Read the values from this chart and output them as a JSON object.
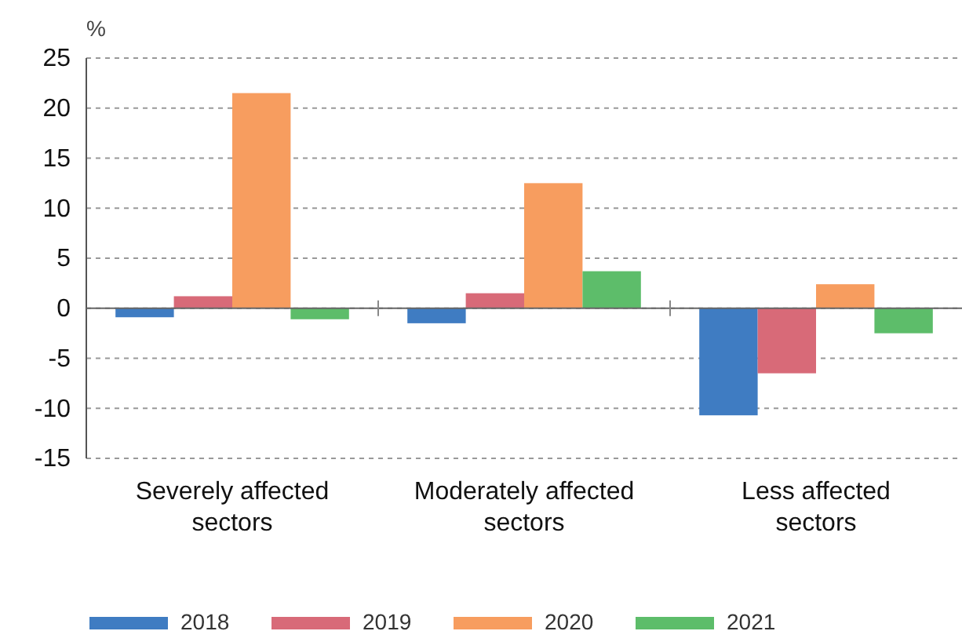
{
  "chart_data": {
    "type": "bar",
    "ylabel": "%",
    "categories": [
      "Severely affected sectors",
      "Moderately affected sectors",
      "Less affected sectors"
    ],
    "series": [
      {
        "name": "2018",
        "color": "#3f7cc2",
        "values": [
          -0.9,
          -1.5,
          -10.7
        ]
      },
      {
        "name": "2019",
        "color": "#d86a78",
        "values": [
          1.2,
          1.5,
          -6.5
        ]
      },
      {
        "name": "2020",
        "color": "#f79d5f",
        "values": [
          21.5,
          12.5,
          2.4
        ]
      },
      {
        "name": "2021",
        "color": "#5dbd6a",
        "values": [
          -1.1,
          3.7,
          -2.5
        ]
      }
    ],
    "ylim": [
      -15,
      25
    ],
    "yticks": [
      -15,
      -10,
      -5,
      0,
      5,
      10,
      15,
      20,
      25
    ],
    "grid": "y",
    "legend": "bottom"
  }
}
